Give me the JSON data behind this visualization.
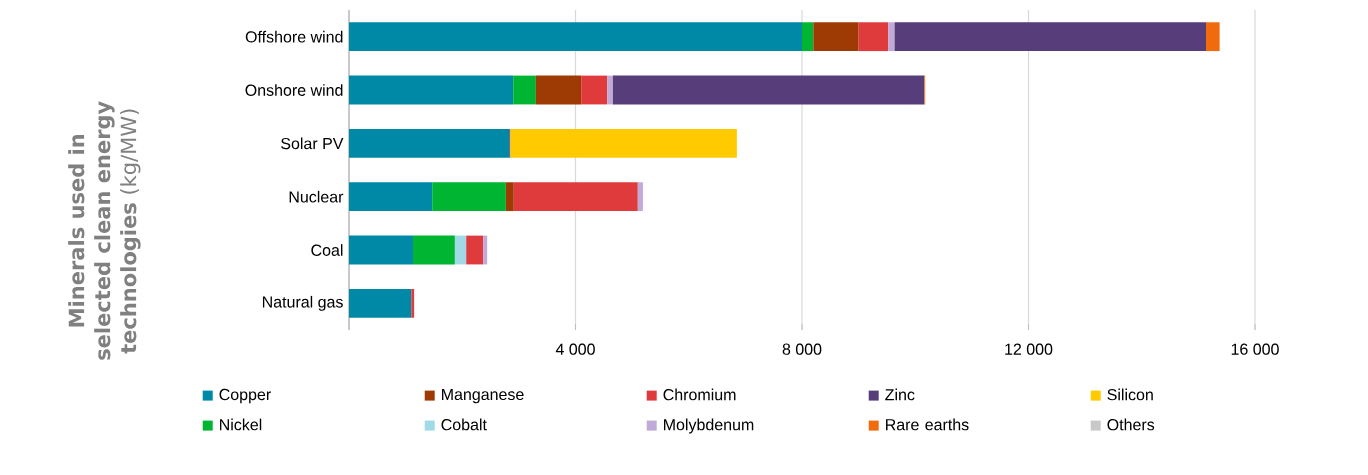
{
  "chart_data": {
    "type": "bar",
    "orientation": "horizontal",
    "stacked": true,
    "ylabel": "**Minerals used in selected clean energy technologies** (kg/MW)",
    "categories": [
      "Offshore wind",
      "Onshore wind",
      "Solar PV",
      "Nuclear",
      "Coal",
      "Natural gas"
    ],
    "series": [
      {
        "name": "Copper",
        "color": "#0089a7",
        "values": [
          8000,
          2900,
          2830,
          1470,
          1130,
          1100
        ]
      },
      {
        "name": "Nickel",
        "color": "#00b532",
        "values": [
          200,
          400,
          null,
          1300,
          740,
          null
        ]
      },
      {
        "name": "Manganese",
        "color": "#9e3a04",
        "values": [
          800,
          800,
          null,
          140,
          null,
          null
        ]
      },
      {
        "name": "Cobalt",
        "color": "#9fdae6",
        "values": [
          null,
          null,
          null,
          null,
          200,
          null
        ]
      },
      {
        "name": "Chromium",
        "color": "#df3b3d",
        "values": [
          525,
          460,
          null,
          2190,
          300,
          50
        ]
      },
      {
        "name": "Molybdenum",
        "color": "#c1a9d8",
        "values": [
          110,
          100,
          null,
          90,
          70,
          null
        ]
      },
      {
        "name": "Zinc",
        "color": "#573d7a",
        "values": [
          5500,
          5500,
          20,
          null,
          null,
          null
        ]
      },
      {
        "name": "Rare earths",
        "color": "#ef6b0b",
        "values": [
          240,
          15,
          null,
          null,
          null,
          null
        ]
      },
      {
        "name": "Silicon",
        "color": "#ffcb00",
        "values": [
          null,
          null,
          4000,
          null,
          null,
          null
        ]
      },
      {
        "name": "Others",
        "color": "#c8c8c8",
        "values": [
          null,
          null,
          null,
          null,
          null,
          null
        ]
      }
    ],
    "xlim": [
      0,
      16000
    ],
    "xticks": [
      {
        "value": 4000,
        "label": "4 000"
      },
      {
        "value": 8000,
        "label": "8 000"
      },
      {
        "value": 12000,
        "label": "12 000"
      },
      {
        "value": 16000,
        "label": "16 000"
      }
    ],
    "grid": "x",
    "legend": "bottom"
  }
}
